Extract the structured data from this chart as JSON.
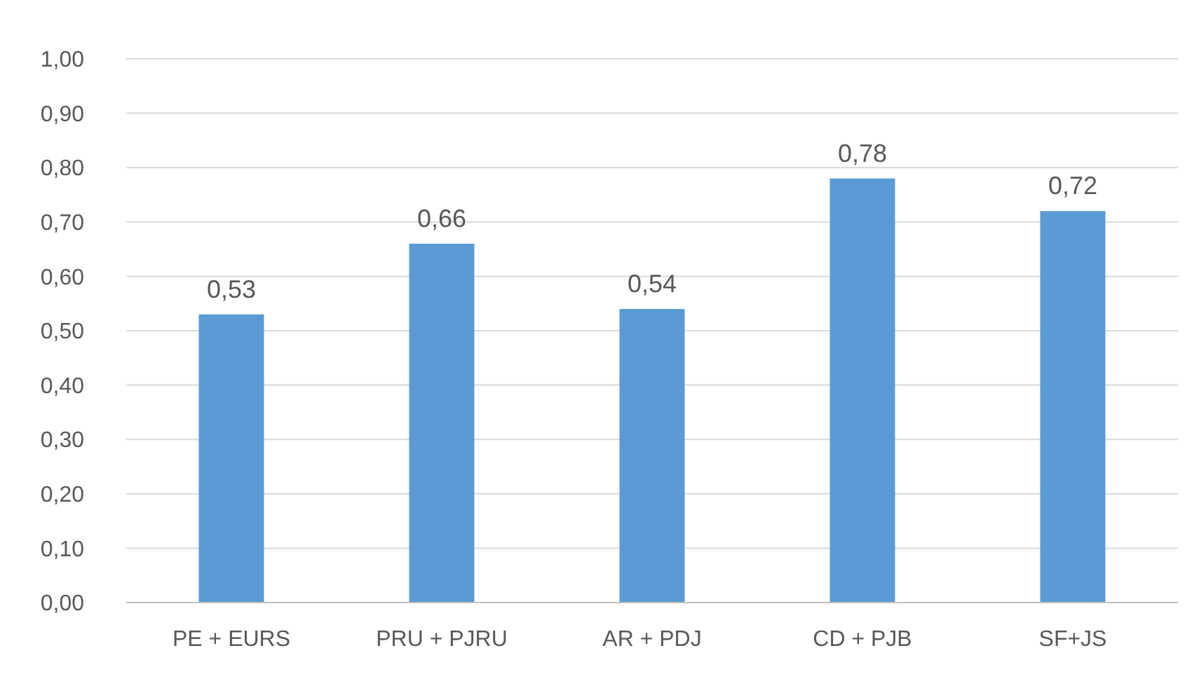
{
  "chart_data": {
    "type": "bar",
    "categories": [
      "PE + EURS",
      "PRU + PJRU",
      "AR + PDJ",
      "CD + PJB",
      "SF+JS"
    ],
    "values": [
      0.53,
      0.66,
      0.54,
      0.78,
      0.72
    ],
    "value_labels": [
      "0,53",
      "0,66",
      "0,54",
      "0,78",
      "0,72"
    ],
    "color": "#5b9bd5",
    "ylim": [
      0,
      1
    ],
    "yticks": [
      {
        "value": 0,
        "label": "0,00"
      },
      {
        "value": 0.1,
        "label": "0,10"
      },
      {
        "value": 0.2,
        "label": "0,20"
      },
      {
        "value": 0.3,
        "label": "0,30"
      },
      {
        "value": 0.4,
        "label": "0,40"
      },
      {
        "value": 0.5,
        "label": "0,50"
      },
      {
        "value": 0.6,
        "label": "0,60"
      },
      {
        "value": 0.7,
        "label": "0,70"
      },
      {
        "value": 0.8,
        "label": "0,80"
      },
      {
        "value": 0.9,
        "label": "0,90"
      },
      {
        "value": 1,
        "label": "1,00"
      }
    ],
    "grid": "y"
  }
}
